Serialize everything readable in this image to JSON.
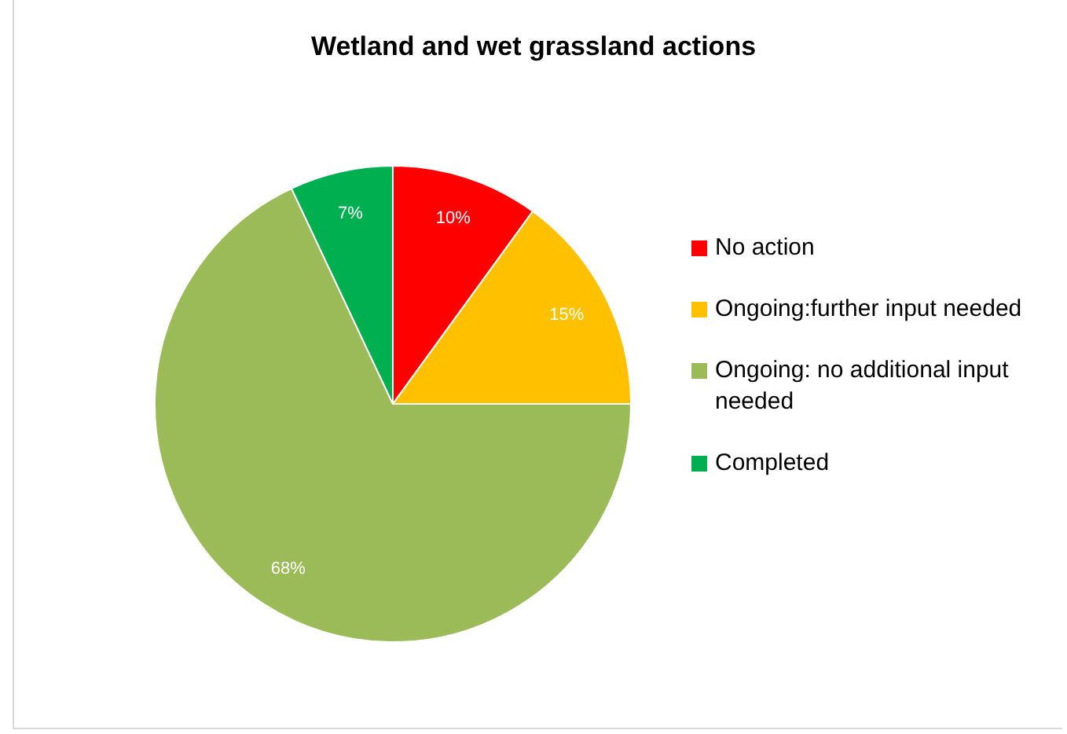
{
  "chart_data": {
    "type": "pie",
    "title": "Wetland and wet grassland actions",
    "categories": [
      "No action",
      "Ongoing:further input needed",
      "Ongoing: no additional input needed",
      "Completed"
    ],
    "values": [
      10,
      15,
      68,
      7
    ],
    "colors": [
      "#ff0000",
      "#ffc000",
      "#9bbb59",
      "#00b050"
    ],
    "value_labels": [
      "10%",
      "15%",
      "68%",
      "7%"
    ],
    "legend": "right"
  }
}
